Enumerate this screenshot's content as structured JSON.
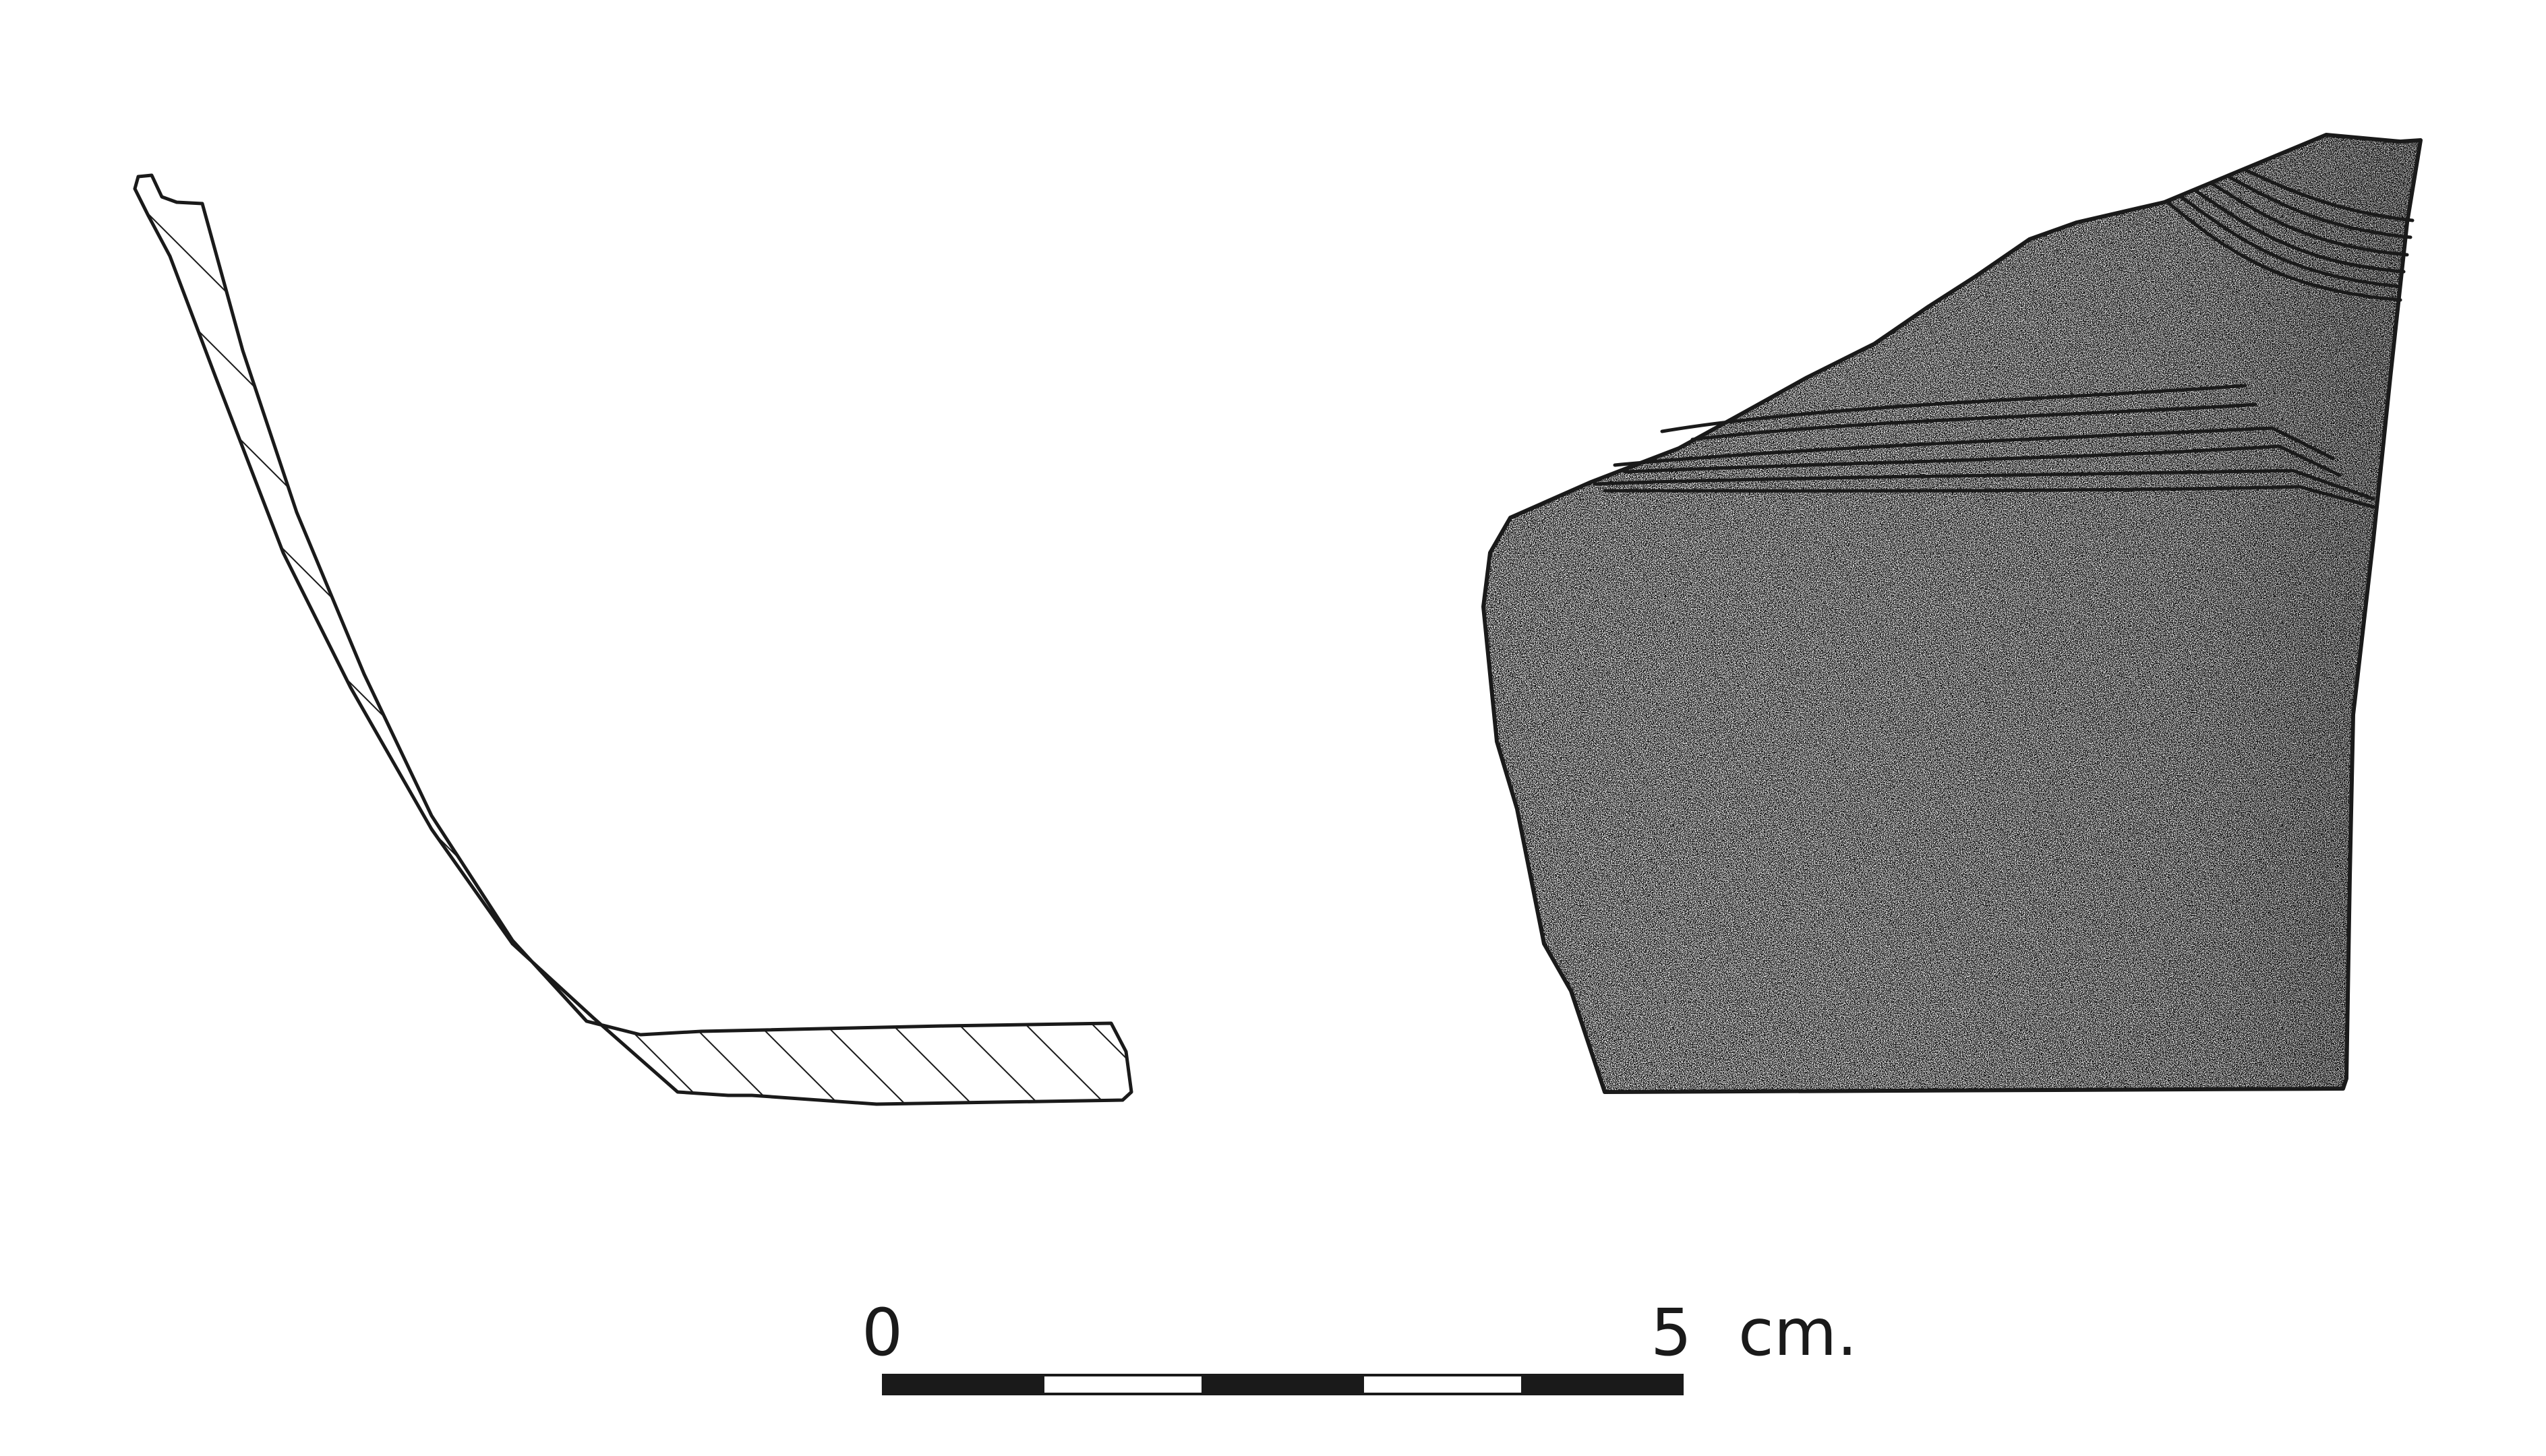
{
  "scale_bar": {
    "start_label": "0",
    "end_label": "5",
    "unit_label": "cm.",
    "segments": 5
  },
  "colors": {
    "ink": "#1a1a1a",
    "paper": "#ffffff"
  }
}
